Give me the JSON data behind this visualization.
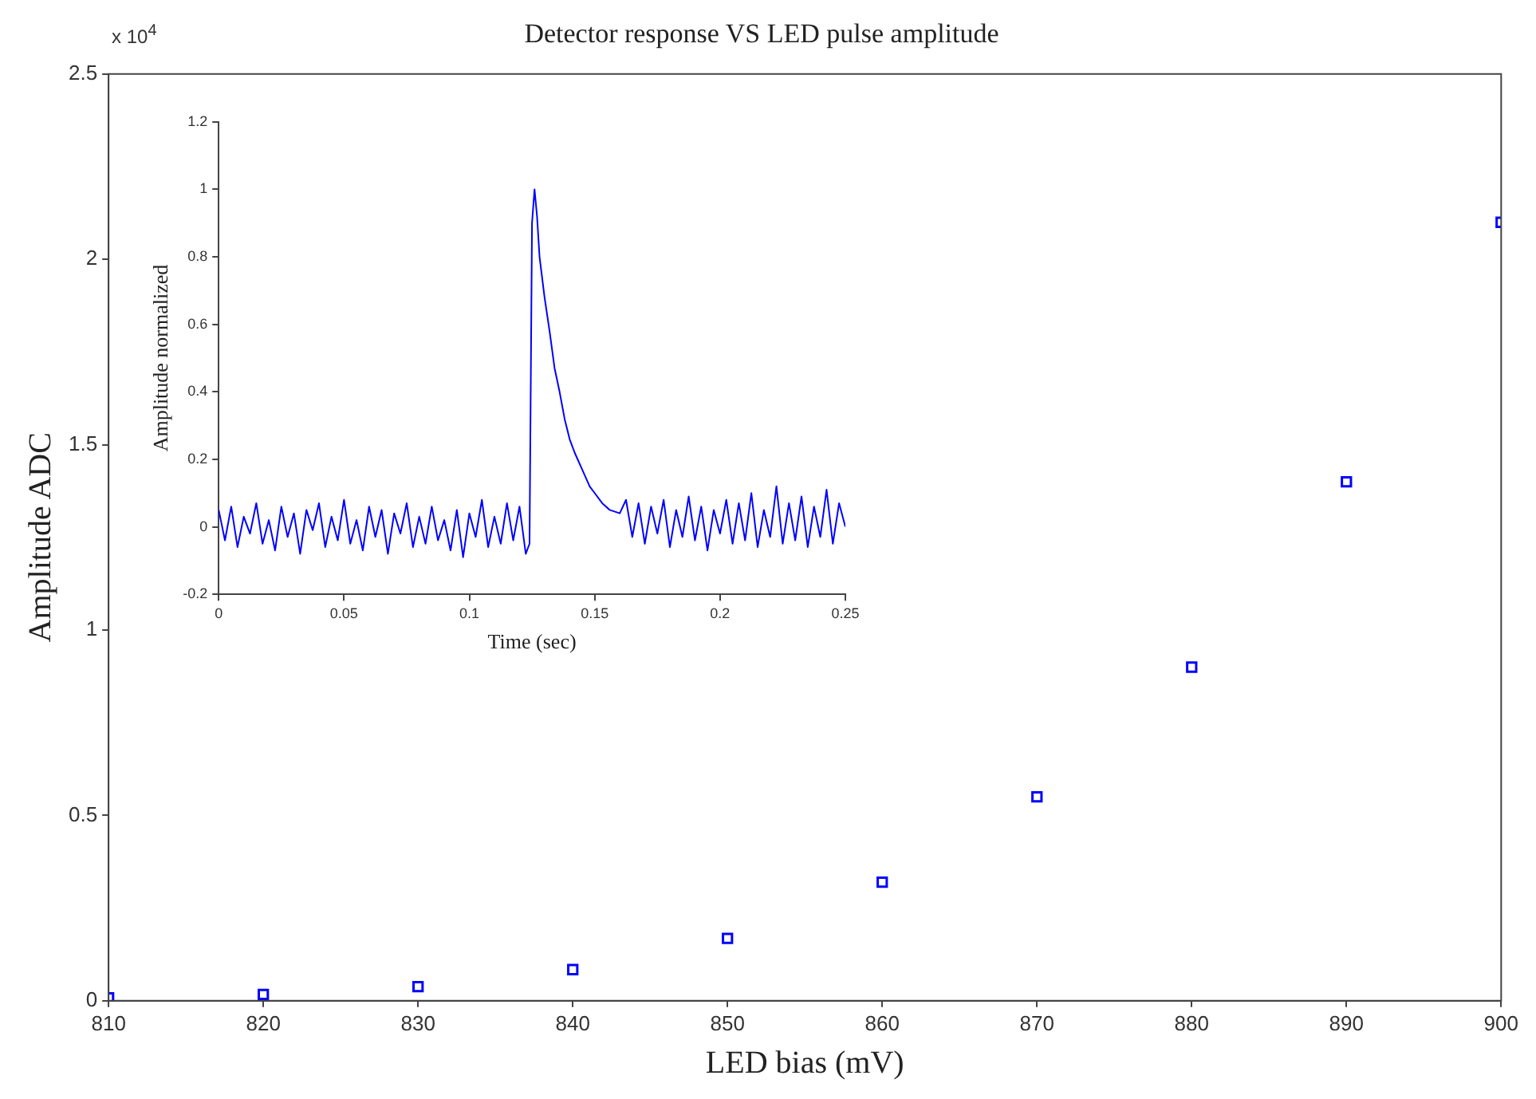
{
  "chart_data": [
    {
      "type": "scatter",
      "title": "Detector response VS LED pulse amplitude",
      "xlabel": "LED bias (mV)",
      "ylabel": "Amplitude ADC",
      "annotations": [
        "x 10$^{4}$"
      ],
      "marker": "square",
      "series": [
        {
          "color": "#0000ff",
          "x": [
            810,
            820,
            830,
            840,
            850,
            860,
            870,
            880,
            890,
            900
          ],
          "values": [
            0.008,
            0.017,
            0.038,
            0.084,
            0.168,
            0.32,
            0.55,
            0.9,
            1.4,
            2.1
          ]
        }
      ],
      "xlim": [
        810,
        900
      ],
      "xticks": [
        810,
        820,
        830,
        840,
        850,
        860,
        870,
        880,
        890,
        900
      ],
      "ylim": [
        0,
        2.5
      ],
      "yticks": [
        0,
        0.5,
        1,
        1.5,
        2,
        2.5
      ]
    },
    {
      "type": "line",
      "xlabel": "Time (sec)",
      "ylabel": "Amplitude normalized",
      "marker": "none",
      "series": [
        {
          "color": "#0000ff",
          "x": [
            0,
            0.0025,
            0.005,
            0.0075,
            0.01,
            0.0125,
            0.015,
            0.0175,
            0.02,
            0.0225,
            0.025,
            0.0275,
            0.03,
            0.0325,
            0.035,
            0.0375,
            0.04,
            0.0425,
            0.045,
            0.0475,
            0.05,
            0.0525,
            0.055,
            0.0575,
            0.06,
            0.0625,
            0.065,
            0.0675,
            0.07,
            0.0725,
            0.075,
            0.0775,
            0.08,
            0.0825,
            0.085,
            0.0875,
            0.09,
            0.0925,
            0.095,
            0.0975,
            0.1,
            0.1025,
            0.105,
            0.1075,
            0.11,
            0.1125,
            0.115,
            0.1175,
            0.12,
            0.1225,
            0.124,
            0.125,
            0.126,
            0.127,
            0.128,
            0.13,
            0.132,
            0.134,
            0.136,
            0.138,
            0.14,
            0.142,
            0.145,
            0.148,
            0.15,
            0.153,
            0.156,
            0.16,
            0.1625,
            0.165,
            0.1675,
            0.17,
            0.1725,
            0.175,
            0.1775,
            0.18,
            0.1825,
            0.185,
            0.1875,
            0.19,
            0.1925,
            0.195,
            0.1975,
            0.2,
            0.2025,
            0.205,
            0.2075,
            0.21,
            0.2125,
            0.215,
            0.2175,
            0.22,
            0.2225,
            0.225,
            0.2275,
            0.23,
            0.2325,
            0.235,
            0.2375,
            0.24,
            0.2425,
            0.245,
            0.2475,
            0.25
          ],
          "values": [
            0.05,
            -0.04,
            0.06,
            -0.06,
            0.03,
            -0.02,
            0.07,
            -0.05,
            0.02,
            -0.07,
            0.06,
            -0.03,
            0.04,
            -0.08,
            0.05,
            -0.01,
            0.07,
            -0.06,
            0.03,
            -0.04,
            0.08,
            -0.05,
            0.02,
            -0.07,
            0.06,
            -0.03,
            0.05,
            -0.08,
            0.04,
            -0.02,
            0.07,
            -0.06,
            0.03,
            -0.05,
            0.06,
            -0.04,
            0.02,
            -0.07,
            0.05,
            -0.09,
            0.04,
            -0.03,
            0.08,
            -0.06,
            0.03,
            -0.05,
            0.07,
            -0.04,
            0.06,
            -0.08,
            -0.05,
            0.9,
            1.0,
            0.92,
            0.8,
            0.68,
            0.58,
            0.47,
            0.4,
            0.32,
            0.26,
            0.22,
            0.17,
            0.12,
            0.1,
            0.07,
            0.05,
            0.04,
            0.08,
            -0.03,
            0.07,
            -0.05,
            0.06,
            -0.02,
            0.08,
            -0.06,
            0.05,
            -0.03,
            0.09,
            -0.04,
            0.06,
            -0.07,
            0.05,
            -0.02,
            0.08,
            -0.05,
            0.07,
            -0.04,
            0.1,
            -0.06,
            0.05,
            -0.03,
            0.12,
            -0.05,
            0.07,
            -0.04,
            0.09,
            -0.06,
            0.06,
            -0.03,
            0.11,
            -0.05,
            0.07,
            0
          ]
        }
      ],
      "xlim": [
        0,
        0.25
      ],
      "xticks": [
        0,
        0.05,
        0.1,
        0.15,
        0.2,
        0.25
      ],
      "ylim": [
        -0.2,
        1.2
      ],
      "yticks": [
        -0.2,
        0,
        0.2,
        0.4,
        0.6,
        0.8,
        1,
        1.2
      ]
    }
  ]
}
